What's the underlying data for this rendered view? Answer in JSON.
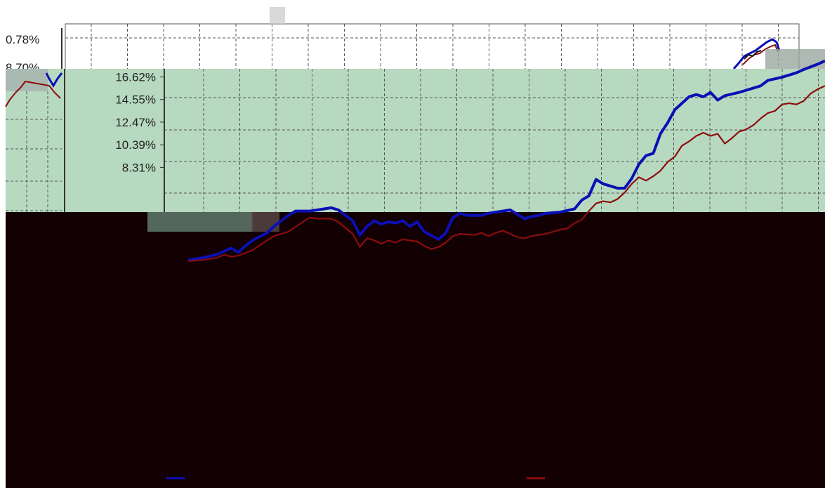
{
  "chart_data": [
    {
      "type": "line",
      "panel": "back",
      "y_tick_labels": [
        "0.78%",
        "8.70%"
      ],
      "grid": true,
      "grid_style": "dashed"
    },
    {
      "type": "line",
      "panel": "front",
      "y_tick_labels": [
        "16.62%",
        "14.55%",
        "12.47%",
        "10.39%",
        "8.31%"
      ],
      "y_ticks": [
        16.62,
        14.55,
        12.47,
        10.39,
        8.31
      ],
      "ylim": [
        -7.6,
        19.5
      ],
      "grid": true,
      "grid_style": "dashed",
      "legend_position": "bottom",
      "series": [
        {
          "color": "#0b10b4",
          "values": [
            {
              "x": 0,
              "y": -0.2
            },
            {
              "x": 2,
              "y": 0.0
            },
            {
              "x": 4,
              "y": 0.3
            },
            {
              "x": 6,
              "y": 0.9
            },
            {
              "x": 7,
              "y": 0.5
            },
            {
              "x": 8,
              "y": 1.1
            },
            {
              "x": 9,
              "y": 1.6
            },
            {
              "x": 11,
              "y": 2.3
            },
            {
              "x": 12,
              "y": 2.9
            },
            {
              "x": 14,
              "y": 3.9
            },
            {
              "x": 15,
              "y": 4.3
            },
            {
              "x": 17,
              "y": 4.3
            },
            {
              "x": 19,
              "y": 4.5
            },
            {
              "x": 20,
              "y": 4.6
            },
            {
              "x": 21,
              "y": 4.4
            },
            {
              "x": 23,
              "y": 3.4
            },
            {
              "x": 24,
              "y": 2.1
            },
            {
              "x": 25,
              "y": 2.9
            },
            {
              "x": 26,
              "y": 3.4
            },
            {
              "x": 27,
              "y": 3.1
            },
            {
              "x": 28,
              "y": 3.3
            },
            {
              "x": 29,
              "y": 3.2
            },
            {
              "x": 30,
              "y": 3.4
            },
            {
              "x": 31,
              "y": 2.9
            },
            {
              "x": 32,
              "y": 3.3
            },
            {
              "x": 33,
              "y": 2.4
            },
            {
              "x": 35,
              "y": 1.7
            },
            {
              "x": 36,
              "y": 2.3
            },
            {
              "x": 37,
              "y": 3.7
            },
            {
              "x": 38,
              "y": 4.1
            },
            {
              "x": 39,
              "y": 3.9
            },
            {
              "x": 41,
              "y": 3.9
            },
            {
              "x": 42,
              "y": 4.1
            },
            {
              "x": 43,
              "y": 4.2
            },
            {
              "x": 45,
              "y": 4.4
            },
            {
              "x": 46,
              "y": 4.0
            },
            {
              "x": 47,
              "y": 3.6
            },
            {
              "x": 48,
              "y": 3.8
            },
            {
              "x": 49,
              "y": 3.9
            },
            {
              "x": 50,
              "y": 4.1
            },
            {
              "x": 52,
              "y": 4.2
            },
            {
              "x": 54,
              "y": 4.5
            },
            {
              "x": 55,
              "y": 5.3
            },
            {
              "x": 56,
              "y": 5.7
            },
            {
              "x": 57,
              "y": 7.2
            },
            {
              "x": 58,
              "y": 6.8
            },
            {
              "x": 59,
              "y": 6.6
            },
            {
              "x": 60,
              "y": 6.4
            },
            {
              "x": 61,
              "y": 6.4
            },
            {
              "x": 62,
              "y": 7.3
            },
            {
              "x": 63,
              "y": 8.6
            },
            {
              "x": 64,
              "y": 9.4
            },
            {
              "x": 65,
              "y": 9.6
            },
            {
              "x": 66,
              "y": 11.4
            },
            {
              "x": 67,
              "y": 12.4
            },
            {
              "x": 68,
              "y": 13.6
            },
            {
              "x": 69,
              "y": 14.2
            },
            {
              "x": 70,
              "y": 14.8
            },
            {
              "x": 71,
              "y": 15.0
            },
            {
              "x": 72,
              "y": 14.8
            },
            {
              "x": 73,
              "y": 15.2
            },
            {
              "x": 74,
              "y": 14.5
            },
            {
              "x": 75,
              "y": 14.9
            },
            {
              "x": 77,
              "y": 15.2
            },
            {
              "x": 78,
              "y": 15.4
            },
            {
              "x": 80,
              "y": 15.8
            },
            {
              "x": 81,
              "y": 16.3
            },
            {
              "x": 83,
              "y": 16.6
            },
            {
              "x": 85,
              "y": 17.0
            },
            {
              "x": 86,
              "y": 17.3
            },
            {
              "x": 88,
              "y": 17.8
            },
            {
              "x": 89,
              "y": 18.1
            }
          ]
        },
        {
          "color": "#8b0d0d",
          "values": [
            {
              "x": 0,
              "y": -0.3
            },
            {
              "x": 2,
              "y": -0.2
            },
            {
              "x": 4,
              "y": 0.0
            },
            {
              "x": 5,
              "y": 0.3
            },
            {
              "x": 6,
              "y": 0.1
            },
            {
              "x": 7,
              "y": 0.2
            },
            {
              "x": 9,
              "y": 0.7
            },
            {
              "x": 11,
              "y": 1.6
            },
            {
              "x": 12,
              "y": 2.0
            },
            {
              "x": 14,
              "y": 2.4
            },
            {
              "x": 16,
              "y": 3.3
            },
            {
              "x": 17,
              "y": 3.7
            },
            {
              "x": 18,
              "y": 3.6
            },
            {
              "x": 20,
              "y": 3.6
            },
            {
              "x": 21,
              "y": 3.3
            },
            {
              "x": 23,
              "y": 2.2
            },
            {
              "x": 24,
              "y": 1.0
            },
            {
              "x": 25,
              "y": 1.8
            },
            {
              "x": 26,
              "y": 1.6
            },
            {
              "x": 27,
              "y": 1.3
            },
            {
              "x": 28,
              "y": 1.6
            },
            {
              "x": 29,
              "y": 1.4
            },
            {
              "x": 30,
              "y": 1.7
            },
            {
              "x": 31,
              "y": 1.6
            },
            {
              "x": 32,
              "y": 1.5
            },
            {
              "x": 33,
              "y": 1.1
            },
            {
              "x": 34,
              "y": 0.8
            },
            {
              "x": 35,
              "y": 1.0
            },
            {
              "x": 36,
              "y": 1.4
            },
            {
              "x": 37,
              "y": 2.0
            },
            {
              "x": 38,
              "y": 2.2
            },
            {
              "x": 40,
              "y": 2.1
            },
            {
              "x": 41,
              "y": 2.3
            },
            {
              "x": 42,
              "y": 2.0
            },
            {
              "x": 43,
              "y": 2.3
            },
            {
              "x": 44,
              "y": 2.5
            },
            {
              "x": 45,
              "y": 2.2
            },
            {
              "x": 46,
              "y": 1.9
            },
            {
              "x": 47,
              "y": 1.8
            },
            {
              "x": 48,
              "y": 2.0
            },
            {
              "x": 50,
              "y": 2.2
            },
            {
              "x": 52,
              "y": 2.6
            },
            {
              "x": 53,
              "y": 2.7
            },
            {
              "x": 54,
              "y": 3.2
            },
            {
              "x": 55,
              "y": 3.5
            },
            {
              "x": 56,
              "y": 4.3
            },
            {
              "x": 57,
              "y": 5.0
            },
            {
              "x": 58,
              "y": 5.2
            },
            {
              "x": 59,
              "y": 5.1
            },
            {
              "x": 60,
              "y": 5.4
            },
            {
              "x": 61,
              "y": 6.0
            },
            {
              "x": 62,
              "y": 6.8
            },
            {
              "x": 63,
              "y": 7.4
            },
            {
              "x": 64,
              "y": 7.1
            },
            {
              "x": 65,
              "y": 7.5
            },
            {
              "x": 66,
              "y": 8.0
            },
            {
              "x": 67,
              "y": 8.8
            },
            {
              "x": 68,
              "y": 9.3
            },
            {
              "x": 69,
              "y": 10.3
            },
            {
              "x": 70,
              "y": 10.7
            },
            {
              "x": 71,
              "y": 11.2
            },
            {
              "x": 72,
              "y": 11.5
            },
            {
              "x": 73,
              "y": 11.2
            },
            {
              "x": 74,
              "y": 11.4
            },
            {
              "x": 75,
              "y": 10.5
            },
            {
              "x": 76,
              "y": 11.0
            },
            {
              "x": 77,
              "y": 11.6
            },
            {
              "x": 78,
              "y": 11.8
            },
            {
              "x": 79,
              "y": 12.2
            },
            {
              "x": 80,
              "y": 12.8
            },
            {
              "x": 81,
              "y": 13.3
            },
            {
              "x": 82,
              "y": 13.5
            },
            {
              "x": 83,
              "y": 14.1
            },
            {
              "x": 84,
              "y": 14.2
            },
            {
              "x": 85,
              "y": 14.1
            },
            {
              "x": 86,
              "y": 14.4
            },
            {
              "x": 87,
              "y": 15.1
            },
            {
              "x": 88,
              "y": 15.5
            },
            {
              "x": 89,
              "y": 15.8
            }
          ]
        }
      ]
    }
  ],
  "colors": {
    "back_panel_bg": "#ffffff",
    "front_panel_bg": "#b7d9c0",
    "dark_region_bg": "#120003",
    "grid_line": "#555555",
    "axis_line": "#333333",
    "series_1": "#0b10b4",
    "series_2": "#8b0d0d"
  }
}
